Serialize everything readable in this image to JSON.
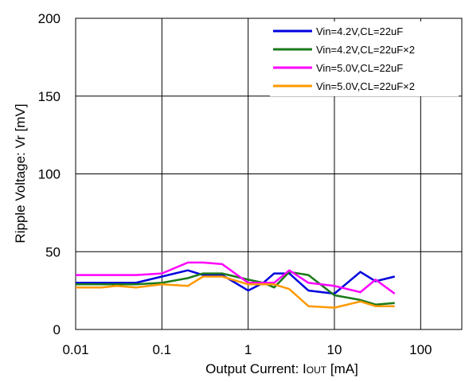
{
  "chart_data": {
    "type": "line",
    "x_scale": "log",
    "xlim": [
      0.01,
      300
    ],
    "ylim": [
      0,
      200
    ],
    "grid": true,
    "legend_position": "top-right",
    "xlabel_main": "Output Current: I",
    "xlabel_sub": "OUT",
    "xlabel_unit": " [mA]",
    "ylabel": "Ripple Voltage: Vr [mV]",
    "x_ticks": [
      {
        "value": 0.01,
        "label": "0.01"
      },
      {
        "value": 0.1,
        "label": "0.1"
      },
      {
        "value": 1,
        "label": "1"
      },
      {
        "value": 10,
        "label": "10"
      },
      {
        "value": 100,
        "label": "100"
      }
    ],
    "y_ticks": [
      {
        "value": 0,
        "label": "0"
      },
      {
        "value": 50,
        "label": "50"
      },
      {
        "value": 100,
        "label": "100"
      },
      {
        "value": 150,
        "label": "150"
      },
      {
        "value": 200,
        "label": "200"
      }
    ],
    "series": [
      {
        "name": "Vin=4.2V,CL=22uF",
        "color": "#0000dd",
        "x": [
          0.01,
          0.02,
          0.03,
          0.05,
          0.1,
          0.2,
          0.3,
          0.5,
          1,
          1.5,
          2,
          3,
          5,
          10,
          20,
          30,
          50
        ],
        "y": [
          30,
          30,
          30,
          30,
          34,
          38,
          35,
          35,
          25,
          30,
          36,
          36,
          25,
          23,
          37,
          31,
          34
        ]
      },
      {
        "name": "Vin=4.2V,CL=22uF×2",
        "color": "#1a7a1a",
        "x": [
          0.01,
          0.02,
          0.03,
          0.05,
          0.1,
          0.2,
          0.3,
          0.5,
          1,
          1.5,
          2,
          3,
          5,
          10,
          20,
          30,
          50
        ],
        "y": [
          29,
          29,
          29,
          29,
          30,
          33,
          36,
          36,
          32,
          30,
          27,
          37,
          35,
          22,
          19,
          16,
          17
        ]
      },
      {
        "name": "Vin=5.0V,CL=22uF",
        "color": "#ff00ff",
        "x": [
          0.01,
          0.02,
          0.03,
          0.05,
          0.1,
          0.2,
          0.3,
          0.5,
          1,
          1.5,
          2,
          3,
          5,
          10,
          20,
          30,
          50
        ],
        "y": [
          35,
          35,
          35,
          35,
          36,
          43,
          43,
          42,
          30,
          30,
          30,
          38,
          30,
          28,
          24,
          32,
          23
        ]
      },
      {
        "name": "Vin=5.0V,CL=22uF×2",
        "color": "#ff9900",
        "x": [
          0.01,
          0.02,
          0.03,
          0.05,
          0.1,
          0.2,
          0.3,
          0.5,
          1,
          1.5,
          2,
          3,
          5,
          10,
          20,
          30,
          50
        ],
        "y": [
          27,
          27,
          28,
          27,
          29,
          28,
          34,
          34,
          29,
          29,
          29,
          26,
          15,
          14,
          18,
          15,
          15
        ]
      }
    ]
  }
}
